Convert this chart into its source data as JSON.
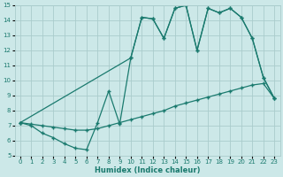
{
  "xlabel": "Humidex (Indice chaleur)",
  "bg_color": "#cce8e8",
  "grid_color": "#aacccc",
  "line_color": "#1a7a6e",
  "xlim": [
    -0.5,
    23.5
  ],
  "ylim": [
    5,
    15
  ],
  "xticks": [
    0,
    1,
    2,
    3,
    4,
    5,
    6,
    7,
    8,
    9,
    10,
    11,
    12,
    13,
    14,
    15,
    16,
    17,
    18,
    19,
    20,
    21,
    22,
    23
  ],
  "yticks": [
    5,
    6,
    7,
    8,
    9,
    10,
    11,
    12,
    13,
    14,
    15
  ],
  "line1_x": [
    0,
    1,
    2,
    3,
    4,
    5,
    6,
    7,
    8,
    9,
    10,
    11,
    12,
    13,
    14,
    15,
    16,
    17,
    18,
    19,
    20,
    21,
    22,
    23
  ],
  "line1_y": [
    7.2,
    7.0,
    6.5,
    6.2,
    5.8,
    5.5,
    5.4,
    7.2,
    9.3,
    7.1,
    11.5,
    14.2,
    14.1,
    12.8,
    14.8,
    15.0,
    12.0,
    14.8,
    14.5,
    14.8,
    14.2,
    12.8,
    10.2,
    8.8
  ],
  "line2_x": [
    0,
    1,
    2,
    3,
    4,
    5,
    6,
    7,
    8,
    9,
    10,
    11,
    12,
    13,
    14,
    15,
    16,
    17,
    18,
    19,
    20,
    21,
    22,
    23
  ],
  "line2_y": [
    7.2,
    7.1,
    7.0,
    6.9,
    6.8,
    6.7,
    6.7,
    6.8,
    7.0,
    7.2,
    7.4,
    7.6,
    7.8,
    8.0,
    8.3,
    8.5,
    8.7,
    8.9,
    9.1,
    9.3,
    9.5,
    9.7,
    9.8,
    8.8
  ],
  "line3_x": [
    0,
    10,
    11,
    12,
    13,
    14,
    15,
    16,
    17,
    18,
    19,
    20,
    21,
    22,
    23
  ],
  "line3_y": [
    7.2,
    11.5,
    14.2,
    14.1,
    12.8,
    14.8,
    15.0,
    12.0,
    14.8,
    14.5,
    14.8,
    14.2,
    12.8,
    10.2,
    8.8
  ]
}
